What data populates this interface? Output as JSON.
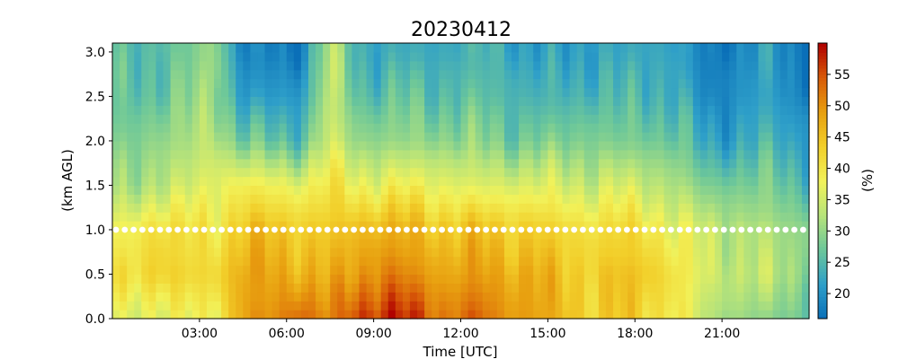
{
  "chart_data": {
    "type": "heatmap",
    "title": "20230412",
    "xlabel": "Time [UTC]",
    "ylabel": "(km AGL)",
    "xlim": [
      0,
      24
    ],
    "ylim": [
      0.0,
      3.1
    ],
    "x_ticks": [
      3,
      6,
      9,
      12,
      15,
      18,
      21
    ],
    "x_tick_labels": [
      "03:00",
      "06:00",
      "09:00",
      "12:00",
      "15:00",
      "18:00",
      "21:00"
    ],
    "y_ticks": [
      0.0,
      0.5,
      1.0,
      1.5,
      2.0,
      2.5,
      3.0
    ],
    "y_tick_labels": [
      "0.0",
      "0.5",
      "1.0",
      "1.5",
      "2.0",
      "2.5",
      "3.0"
    ],
    "colorbar": {
      "label": "(%)",
      "range": [
        16,
        60
      ],
      "ticks": [
        20,
        25,
        30,
        35,
        40,
        45,
        50,
        55
      ],
      "tick_labels": [
        "20",
        "25",
        "30",
        "35",
        "40",
        "45",
        "50",
        "55"
      ],
      "colormap_stops": [
        "#0a6fb8",
        "#2e9fc9",
        "#6cc79a",
        "#b6e37a",
        "#f2f25a",
        "#f2cf2a",
        "#e8a010",
        "#d85a08",
        "#b00000"
      ]
    },
    "height_levels_km": [
      0.0,
      0.5,
      1.0,
      1.5,
      2.0,
      2.5,
      3.0
    ],
    "time_hours": [
      0.5,
      1.5,
      2.5,
      3.5,
      4.5,
      5.5,
      6.5,
      7.5,
      8.5,
      9.5,
      10.5,
      11.5,
      12.5,
      13.5,
      14.5,
      15.5,
      16.5,
      17.5,
      18.5,
      19.5,
      20.5,
      21.5,
      22.5,
      23.5
    ],
    "value_profiles_percent": [
      [
        35,
        40,
        38,
        30,
        28,
        26,
        25
      ],
      [
        38,
        44,
        42,
        34,
        30,
        27,
        26
      ],
      [
        36,
        42,
        40,
        34,
        31,
        28,
        27
      ],
      [
        38,
        42,
        40,
        37,
        34,
        32,
        31
      ],
      [
        49,
        48,
        45,
        39,
        27,
        21,
        18
      ],
      [
        50,
        48,
        45,
        38,
        26,
        21,
        18
      ],
      [
        54,
        48,
        44,
        37,
        26,
        21,
        18
      ],
      [
        50,
        46,
        44,
        40,
        35,
        34,
        33
      ],
      [
        57,
        50,
        46,
        38,
        30,
        26,
        24
      ],
      [
        58,
        52,
        47,
        38,
        30,
        26,
        23
      ],
      [
        56,
        50,
        46,
        38,
        30,
        26,
        23
      ],
      [
        52,
        48,
        45,
        37,
        30,
        26,
        23
      ],
      [
        54,
        49,
        45,
        36,
        29,
        26,
        24
      ],
      [
        50,
        48,
        44,
        36,
        28,
        25,
        24
      ],
      [
        49,
        48,
        44,
        36,
        28,
        24,
        21
      ],
      [
        46,
        44,
        42,
        35,
        28,
        24,
        21
      ],
      [
        43,
        44,
        41,
        35,
        29,
        25,
        23
      ],
      [
        44,
        45,
        42,
        35,
        28,
        24,
        22
      ],
      [
        42,
        44,
        41,
        34,
        28,
        25,
        23
      ],
      [
        40,
        40,
        37,
        32,
        27,
        24,
        22
      ],
      [
        32,
        35,
        34,
        28,
        21,
        18,
        17
      ],
      [
        31,
        34,
        33,
        28,
        23,
        20,
        19
      ],
      [
        29,
        33,
        32,
        28,
        24,
        22,
        21
      ],
      [
        28,
        31,
        30,
        26,
        22,
        19,
        18
      ]
    ],
    "marker_line": {
      "height_km": 1.0,
      "style": "white dotted",
      "color": "#ffffff"
    }
  }
}
